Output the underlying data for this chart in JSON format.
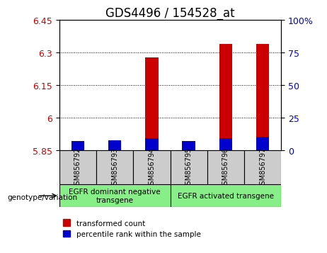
{
  "title": "GDS4496 / 154528_at",
  "samples": [
    "GSM856792",
    "GSM856793",
    "GSM856794",
    "GSM856795",
    "GSM856796",
    "GSM856797"
  ],
  "red_values": [
    5.875,
    5.865,
    6.28,
    5.895,
    6.34,
    6.34
  ],
  "blue_values": [
    5.895,
    5.897,
    5.907,
    5.895,
    5.907,
    5.912
  ],
  "ylim_left": [
    5.85,
    6.45
  ],
  "yticks_left": [
    5.85,
    6.0,
    6.15,
    6.3,
    6.45
  ],
  "ytick_labels_left": [
    "5.85",
    "6",
    "6.15",
    "6.3",
    "6.45"
  ],
  "ylim_right": [
    0,
    100
  ],
  "yticks_right": [
    0,
    25,
    50,
    75,
    100
  ],
  "ytick_labels_right": [
    "0",
    "25",
    "50",
    "75",
    "100%"
  ],
  "bar_bottom": 5.85,
  "bar_width": 0.35,
  "group1_label": "EGFR dominant negative\ntransgene",
  "group2_label": "EGFR activated transgene",
  "genotype_label": "genotype/variation",
  "legend_red": "transformed count",
  "legend_blue": "percentile rank within the sample",
  "red_color": "#cc0000",
  "blue_color": "#0000cc",
  "group_bg_color": "#88ee88",
  "sample_bg_color": "#cccccc",
  "title_fontsize": 12,
  "tick_fontsize": 9,
  "gridlines": [
    6.0,
    6.15,
    6.3
  ]
}
